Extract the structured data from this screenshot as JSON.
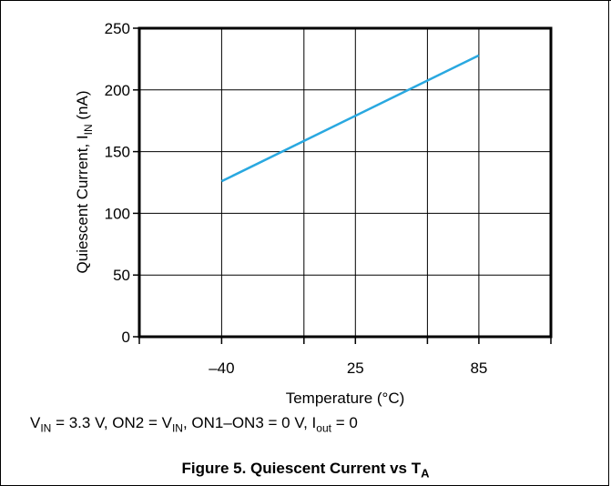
{
  "conditions": {
    "vin_label": "V",
    "vin_sub": "IN",
    "part1": " = 3.3 V, ON2 = V",
    "on2_sub": "IN",
    "part2": ", ON1–ON3 = 0 V, I",
    "iout_sub": "out",
    "part3": " = 0"
  },
  "caption": {
    "text": "Figure 5. Quiescent Current vs T",
    "sub": "A"
  },
  "colors": {
    "line": "#29a8e0",
    "axis": "#000000",
    "grid": "#000000"
  },
  "chart_data": {
    "type": "line",
    "title": "",
    "xlabel": "Temperature (°C)",
    "ylabel_main": "Quiescent Current, I",
    "ylabel_sub": "IN",
    "ylabel_unit": " (nA)",
    "xlim": [
      -80,
      120
    ],
    "ylim": [
      0,
      250
    ],
    "xticks": [
      -40,
      25,
      85
    ],
    "xtick_labels": [
      "–40",
      "25",
      "85"
    ],
    "xgrid": [
      -80,
      -40,
      0,
      25,
      60,
      85,
      120
    ],
    "yticks": [
      0,
      50,
      100,
      150,
      200,
      250
    ],
    "grid": true,
    "series": [
      {
        "x": [
          -40,
          85
        ],
        "y": [
          126,
          228
        ]
      }
    ]
  }
}
